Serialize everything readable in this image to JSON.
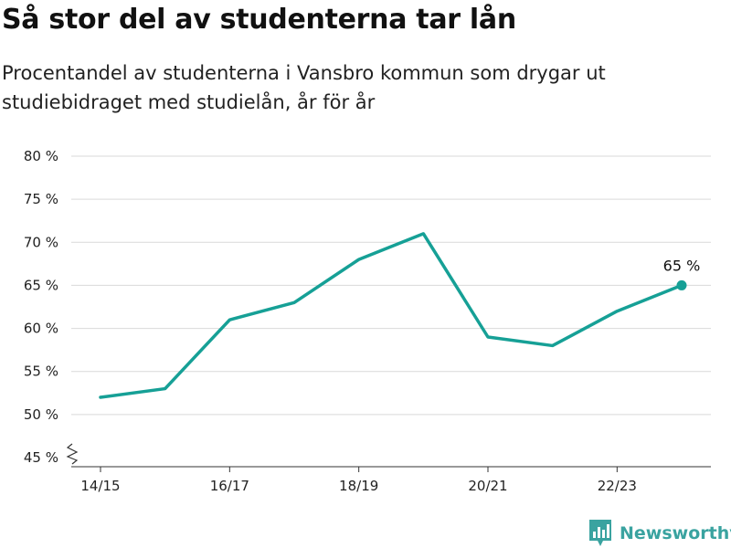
{
  "chart_data": {
    "type": "line",
    "title": "Så stor del av studenterna tar lån",
    "subtitle": "Procentandel av studenterna i Vansbro kommun som drygar ut studiebidraget med studielån, år för år",
    "x": [
      "14/15",
      "15/16",
      "16/17",
      "17/18",
      "18/19",
      "19/20",
      "20/21",
      "21/22",
      "22/23",
      "23/24"
    ],
    "x_tick_labels": [
      "14/15",
      "16/17",
      "18/19",
      "20/21",
      "22/23"
    ],
    "series": [
      {
        "values": [
          52,
          53,
          61,
          63,
          68,
          71,
          59,
          58,
          62,
          65
        ]
      }
    ],
    "ylim": [
      45,
      80
    ],
    "y_ticks": [
      45,
      50,
      55,
      60,
      65,
      70,
      75,
      80
    ],
    "y_tick_labels": [
      "45 %",
      "50 %",
      "55 %",
      "60 %",
      "65 %",
      "70 %",
      "75 %",
      "80 %"
    ],
    "last_point_label": "65 %",
    "grid": true,
    "axis_break": true
  },
  "colors": {
    "line": "#16a096",
    "grid": "#d9d9d9",
    "axis": "#333333",
    "brand": "#3aa3a0"
  },
  "brand": {
    "name": "Newsworthy",
    "icon": "newsworthy-logo-icon"
  }
}
